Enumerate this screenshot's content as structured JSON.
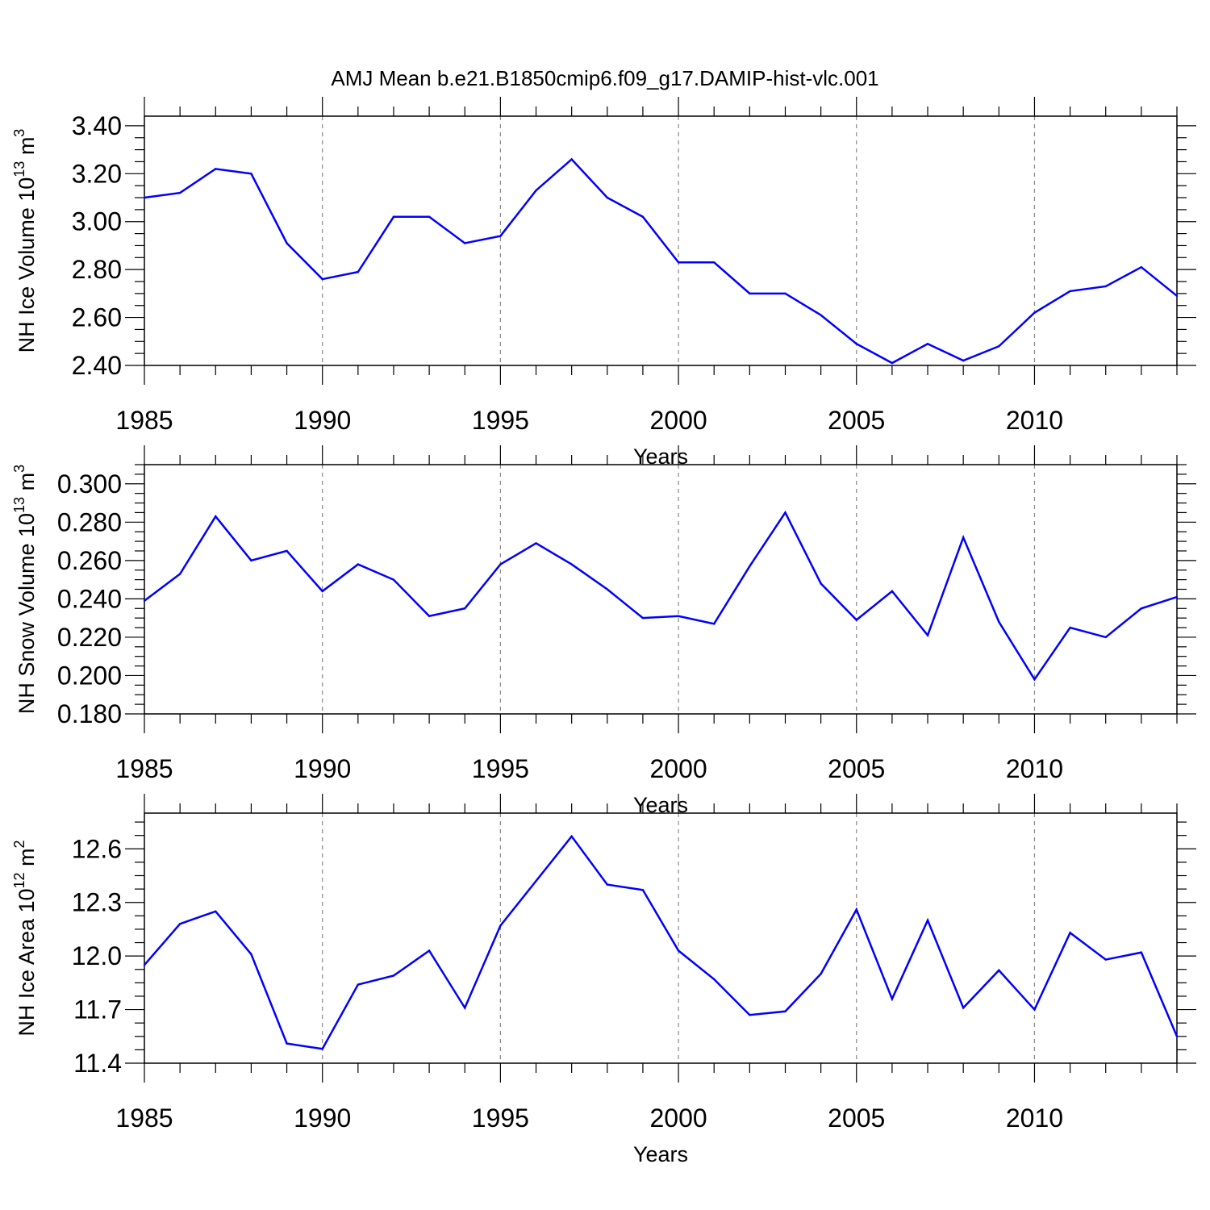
{
  "figure_title": "AMJ Mean b.e21.B1850cmip6.f09_g17.DAMIP-hist-vlc.001",
  "colors": {
    "line": "#0000ff",
    "axis": "#000000",
    "grid": "#888888",
    "background": "#ffffff"
  },
  "chart_data": [
    {
      "type": "line",
      "title": "",
      "xlabel": "Years",
      "ylabel": {
        "prefix": "NH Ice Volume 10",
        "exp": "13",
        "unit": " m",
        "unit_exp": "3"
      },
      "xlim": [
        1985,
        2014
      ],
      "ylim": [
        2.4,
        3.44
      ],
      "xticks": [
        "1985",
        "1990",
        "1995",
        "2000",
        "2005",
        "2010"
      ],
      "yticks": [
        "2.40",
        "2.60",
        "2.80",
        "3.00",
        "3.20",
        "3.40"
      ],
      "x": [
        1985,
        1986,
        1987,
        1988,
        1989,
        1990,
        1991,
        1992,
        1993,
        1994,
        1995,
        1996,
        1997,
        1998,
        1999,
        2000,
        2001,
        2002,
        2003,
        2004,
        2005,
        2006,
        2007,
        2008,
        2009,
        2010,
        2011,
        2012,
        2013,
        2014
      ],
      "series": [
        {
          "name": "NH Ice Volume",
          "values": [
            3.1,
            3.12,
            3.22,
            3.2,
            2.91,
            2.76,
            2.79,
            3.02,
            3.02,
            2.91,
            2.94,
            3.13,
            3.26,
            3.1,
            3.02,
            2.83,
            2.83,
            2.7,
            2.7,
            2.61,
            2.49,
            2.41,
            2.49,
            2.42,
            2.48,
            2.62,
            2.71,
            2.73,
            2.81,
            2.69
          ]
        }
      ],
      "grid": "vertical dashed at major x ticks",
      "legend": "none"
    },
    {
      "type": "line",
      "title": "",
      "xlabel": "Years",
      "ylabel": {
        "prefix": "NH Snow Volume 10",
        "exp": "13",
        "unit": " m",
        "unit_exp": "3"
      },
      "xlim": [
        1985,
        2014
      ],
      "ylim": [
        0.18,
        0.31
      ],
      "xticks": [
        "1985",
        "1990",
        "1995",
        "2000",
        "2005",
        "2010"
      ],
      "yticks": [
        "0.180",
        "0.200",
        "0.220",
        "0.240",
        "0.260",
        "0.280",
        "0.300"
      ],
      "x": [
        1985,
        1986,
        1987,
        1988,
        1989,
        1990,
        1991,
        1992,
        1993,
        1994,
        1995,
        1996,
        1997,
        1998,
        1999,
        2000,
        2001,
        2002,
        2003,
        2004,
        2005,
        2006,
        2007,
        2008,
        2009,
        2010,
        2011,
        2012,
        2013,
        2014
      ],
      "series": [
        {
          "name": "NH Snow Volume",
          "values": [
            0.239,
            0.253,
            0.283,
            0.26,
            0.265,
            0.244,
            0.258,
            0.25,
            0.231,
            0.235,
            0.258,
            0.269,
            0.258,
            0.245,
            0.23,
            0.231,
            0.227,
            0.257,
            0.285,
            0.248,
            0.229,
            0.244,
            0.221,
            0.272,
            0.228,
            0.198,
            0.225,
            0.22,
            0.235,
            0.241
          ]
        }
      ],
      "grid": "vertical dashed at major x ticks",
      "legend": "none"
    },
    {
      "type": "line",
      "title": "",
      "xlabel": "Years",
      "ylabel": {
        "prefix": "NH Ice Area 10",
        "exp": "12",
        "unit": " m",
        "unit_exp": "2"
      },
      "xlim": [
        1985,
        2014
      ],
      "ylim": [
        11.4,
        12.8
      ],
      "xticks": [
        "1985",
        "1990",
        "1995",
        "2000",
        "2005",
        "2010"
      ],
      "yticks": [
        "11.4",
        "11.7",
        "12.0",
        "12.3",
        "12.6"
      ],
      "x": [
        1985,
        1986,
        1987,
        1988,
        1989,
        1990,
        1991,
        1992,
        1993,
        1994,
        1995,
        1996,
        1997,
        1998,
        1999,
        2000,
        2001,
        2002,
        2003,
        2004,
        2005,
        2006,
        2007,
        2008,
        2009,
        2010,
        2011,
        2012,
        2013,
        2014
      ],
      "series": [
        {
          "name": "NH Ice Area",
          "values": [
            11.95,
            12.18,
            12.25,
            12.01,
            11.51,
            11.48,
            11.84,
            11.89,
            12.03,
            11.71,
            12.17,
            12.42,
            12.67,
            12.4,
            12.37,
            12.03,
            11.87,
            11.67,
            11.69,
            11.9,
            12.26,
            11.76,
            12.2,
            11.71,
            11.92,
            11.7,
            12.13,
            11.98,
            12.02,
            11.55
          ]
        }
      ],
      "grid": "vertical dashed at major x ticks",
      "legend": "none"
    }
  ]
}
